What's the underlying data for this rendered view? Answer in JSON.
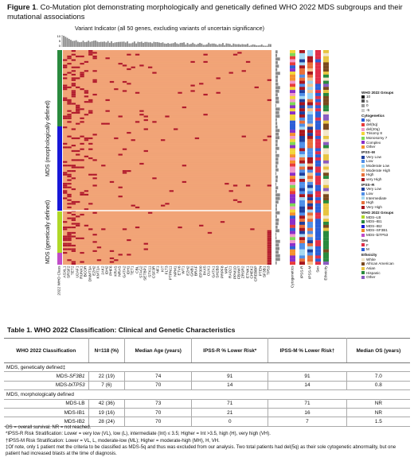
{
  "figure": {
    "caption_label": "Figure 1",
    "caption_text": ". Co-Mutation plot demonstrating morphologically and genetically defined WHO 2022 MDS subgroups and their mutational associations",
    "variant_indicator": "Variant Indicator (all 50 genes, excluding variants of uncertain significance)",
    "top_axis_ticks": [
      "10",
      "5",
      "0"
    ],
    "side_labels": {
      "morph": "MDS (morphologically defined)",
      "genetic": "MDS (genetically defined)"
    },
    "genes": [
      "2022 WHO Class",
      "ASXL1",
      "SRSF2",
      "TET2",
      "U2AF1",
      "RUNX1",
      "BCOR",
      "DNMT3A",
      "EZH2",
      "KMT2A",
      "JAK2",
      "IDH2",
      "PHF6",
      "KRAS",
      "NRAS",
      "GATA2",
      "IDH1",
      "TET1",
      "CBL",
      "STAG2",
      "SETBP1",
      "STK11",
      "CSF3R",
      "NF1",
      "KIT",
      "FLT3",
      "PTPN11",
      "NPM1",
      "ETV6",
      "WT1",
      "EZH2",
      "GNB1",
      "BRAF",
      "EP300",
      "PAX5",
      "CUX1",
      "GATA1",
      "SH2B3",
      "PRPF8",
      "MPL",
      "RAD21",
      "PPM1D",
      "FBXW7",
      "ZRSR2",
      "ETNK1",
      "CHEK2",
      "CREBBP",
      "PTEN",
      "SF3B1",
      "TP53"
    ],
    "annotation_columns": [
      "Cytogenetics",
      "IPSS-R",
      "IPSS-M",
      "Sex",
      "Ethnicity"
    ],
    "colors": {
      "background": "#f2a578",
      "mutation": "#b0182c",
      "who_morph": "#2a8a3e",
      "who_ib2": "#1818d8",
      "who_lb": "#b0d828",
      "who_tp53": "#c04cc8"
    },
    "legend": [
      {
        "title": "WHO 2022 Groups",
        "items": [
          {
            "label": "10",
            "color": "#1b1b1b"
          },
          {
            "label": "5",
            "color": "#555555"
          },
          {
            "label": "0",
            "color": "#9a9a9a"
          },
          {
            "label": "-5",
            "color": "#cccccc"
          }
        ]
      },
      {
        "title": "Cytogenetics",
        "items": [
          {
            "label": "Nk",
            "color": "#2c5fd6"
          },
          {
            "label": "del(5q)",
            "color": "#e83b3b"
          },
          {
            "label": "del(20q)",
            "color": "#f29acb"
          },
          {
            "label": "Trisomy 8",
            "color": "#f2d63a"
          },
          {
            "label": "Monosomy 7",
            "color": "#7ed957"
          },
          {
            "label": "Complex",
            "color": "#8b2fc9"
          },
          {
            "label": "Other",
            "color": "#f5912e"
          }
        ]
      },
      {
        "title": "IPSS–M",
        "items": [
          {
            "label": "Very Low",
            "color": "#1e3f9e"
          },
          {
            "label": "Low",
            "color": "#4f8fe8"
          },
          {
            "label": "Moderate Low",
            "color": "#9ad3f5"
          },
          {
            "label": "Moderate High",
            "color": "#f5c08a"
          },
          {
            "label": "High",
            "color": "#e8703a"
          },
          {
            "label": "very High",
            "color": "#a8161e"
          }
        ]
      },
      {
        "title": "IPSS–R",
        "items": [
          {
            "label": "Very Low",
            "color": "#1e3f9e"
          },
          {
            "label": "Low",
            "color": "#4f8fe8"
          },
          {
            "label": "Intermediate",
            "color": "#a4d8f2"
          },
          {
            "label": "High",
            "color": "#e8703a"
          },
          {
            "label": "Very High",
            "color": "#a8161e"
          }
        ]
      },
      {
        "title": "WHO 2022 Groups",
        "items": [
          {
            "label": "MDS–LB",
            "color": "#b0d828"
          },
          {
            "label": "MDS–IB1",
            "color": "#2a8a3e"
          },
          {
            "label": "MDS–IB2",
            "color": "#1818d8"
          },
          {
            "label": "MDS–SF3B1",
            "color": "#f08b2a"
          },
          {
            "label": "MDS–biTP53",
            "color": "#c04cc8"
          }
        ]
      },
      {
        "title": "Sex",
        "items": [
          {
            "label": "F",
            "color": "#e0304a"
          },
          {
            "label": "M",
            "color": "#2c5fd6"
          }
        ]
      },
      {
        "title": "Ethnicity",
        "items": [
          {
            "label": "White",
            "color": "#f2e6c8"
          },
          {
            "label": "African American",
            "color": "#7a4a1e"
          },
          {
            "label": "Asian",
            "color": "#e8c440"
          },
          {
            "label": "Hispanic",
            "color": "#2a8a3e"
          },
          {
            "label": "Other",
            "color": "#8a5cc0"
          }
        ]
      }
    ]
  },
  "table": {
    "title": "Table 1. WHO 2022 Classification: Clinical and Genetic Characteristics",
    "headers": [
      "WHO 2022 Classification",
      "N=118 (%)",
      "Median Age (years)",
      "IPSS-R % Lower Risk*",
      "IPSS-M % Lower Risk†",
      "Median OS (years)"
    ],
    "sections": [
      {
        "name": "MDS, genetically defined‡",
        "rows": [
          {
            "cls_prefix": "MDS-",
            "cls_italic": "SF3B1",
            "n": "22 (19)",
            "age": "74",
            "ipssr": "91",
            "ipssm": "91",
            "os": "7.0"
          },
          {
            "cls_prefix": "MDS-",
            "cls_italic": "biTP53",
            "n": "7 (6)",
            "age": "70",
            "ipssr": "14",
            "ipssm": "14",
            "os": "0.8"
          }
        ]
      },
      {
        "name": "MDS, morphologically defined",
        "rows": [
          {
            "cls_prefix": "MDS-LB",
            "cls_italic": "",
            "n": "42 (36)",
            "age": "73",
            "ipssr": "71",
            "ipssm": "71",
            "os": "NR"
          },
          {
            "cls_prefix": "MDS-IB1",
            "cls_italic": "",
            "n": "19 (16)",
            "age": "70",
            "ipssr": "21",
            "ipssm": "16",
            "os": "NR"
          },
          {
            "cls_prefix": "MDS-IB2",
            "cls_italic": "",
            "n": "28 (24)",
            "age": "70",
            "ipssr": "0",
            "ipssm": "7",
            "os": "1.5"
          }
        ]
      }
    ],
    "footnotes": [
      "OS = overall survival. NR = not reached.",
      "*IPSS-R Risk Stratification: Lower = very low (VL), low (L), intermediate (Int) ≤ 3.5; Higher = Int >3.5, high (H), very high (VH).",
      "†IPSS-M Risk Stratification: Lower = VL, L, moderate-low (ML); Higher = moderate-high (MH), H, VH.",
      "‡Of note, only 1 patient met the criteria to be classified as MDS-5q and thus was excluded from our analysis. Two total patients had del(5q) as their sole cytogenetic abnormality, but one patient had increased blasts at the time of diagnosis."
    ]
  }
}
